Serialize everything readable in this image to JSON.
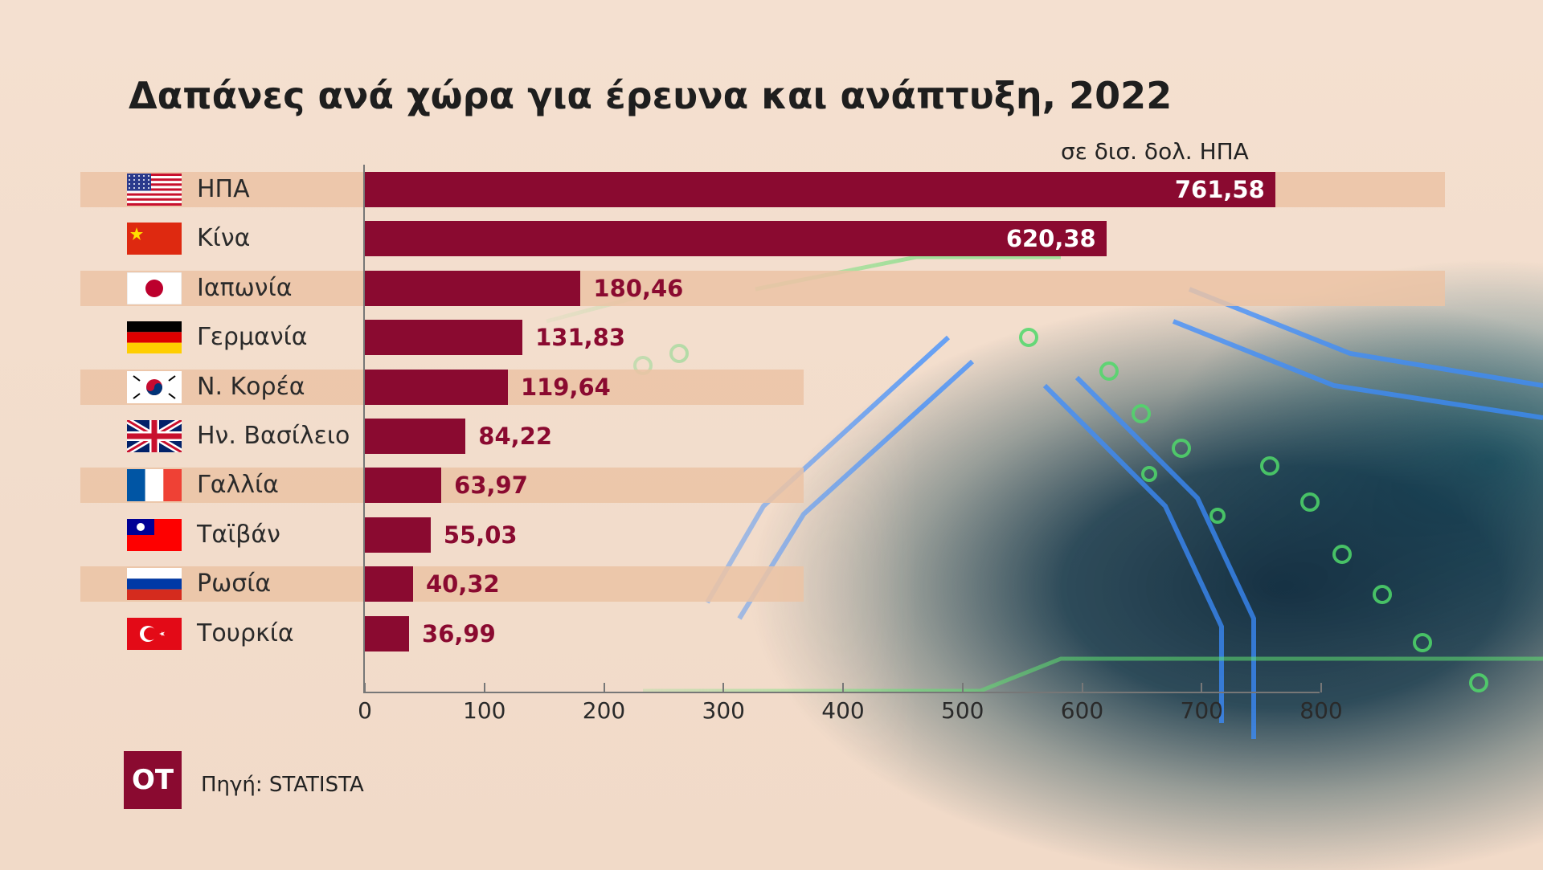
{
  "title": "Δαπάνες ανά χώρα για έρευνα και ανάπτυξη, 2022",
  "unit_label": "σε δισ. δολ. ΗΠΑ",
  "source": "Πηγή: STATISTA",
  "logo": "OT",
  "colors": {
    "bar": "#8a0a30",
    "band": "#ebc3a5",
    "background": "#f2dccb",
    "text": "#1e1e1e"
  },
  "chart_data": {
    "type": "bar",
    "orientation": "horizontal",
    "title": "Δαπάνες ανά χώρα για έρευνα και ανάπτυξη, 2022",
    "xlabel": "σε δισ. δολ. ΗΠΑ",
    "ylabel": "",
    "xlim": [
      0,
      800
    ],
    "x_ticks": [
      0,
      100,
      200,
      300,
      400,
      500,
      600,
      700,
      800
    ],
    "x_tick_labels": [
      "0",
      "100",
      "200",
      "300",
      "400",
      "500",
      "600",
      "700",
      "800"
    ],
    "grid": false,
    "categories": [
      "ΗΠΑ",
      "Κίνα",
      "Ιαπωνία",
      "Γερμανία",
      "Ν. Κορέα",
      "Ην. Βασίλειο",
      "Γαλλία",
      "Ταϊβάν",
      "Ρωσία",
      "Τουρκία"
    ],
    "flags": [
      "flag-usa",
      "flag-china",
      "flag-japan",
      "flag-germany",
      "flag-south-korea",
      "flag-uk",
      "flag-france",
      "flag-taiwan",
      "flag-russia",
      "flag-turkey"
    ],
    "values": [
      761.58,
      620.38,
      180.46,
      131.83,
      119.64,
      84.22,
      63.97,
      55.03,
      40.32,
      36.99
    ],
    "value_labels": [
      "761,58",
      "620,38",
      "180,46",
      "131,83",
      "119,64",
      "84,22",
      "63,97",
      "55,03",
      "40,32",
      "36,99"
    ]
  }
}
